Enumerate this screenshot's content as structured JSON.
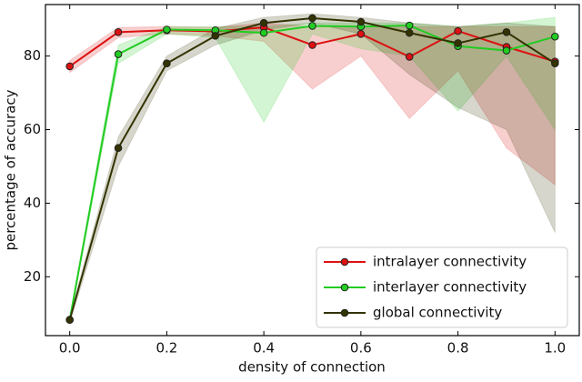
{
  "chart_data": {
    "type": "line",
    "xlabel": "density of connection",
    "ylabel": "percentage of accuracy",
    "x": [
      0,
      0.1,
      0.2,
      0.3,
      0.4,
      0.5,
      0.6,
      0.7,
      0.8,
      0.9,
      1.0
    ],
    "xlim": [
      -0.05,
      1.05
    ],
    "ylim": [
      4,
      94
    ],
    "xticks": [
      {
        "value": 0,
        "label": "0.0"
      },
      {
        "value": 0.2,
        "label": "0.2"
      },
      {
        "value": 0.4,
        "label": "0.4"
      },
      {
        "value": 0.6,
        "label": "0.6"
      },
      {
        "value": 0.8,
        "label": "0.8"
      },
      {
        "value": 1,
        "label": "1.0"
      }
    ],
    "yticks": [
      20,
      40,
      60,
      80
    ],
    "legend": "lower right",
    "series": [
      {
        "name": "intralayer connectivity",
        "color": "#dd1111",
        "values": [
          77.2,
          86.5,
          87,
          86.7,
          87.8,
          83,
          86,
          79.8,
          86.8,
          82.5,
          78.5
        ],
        "lower": [
          75.5,
          85,
          86,
          85.5,
          84,
          71,
          80,
          63,
          76,
          55,
          45
        ],
        "upper": [
          78.8,
          87.8,
          88,
          87.8,
          89,
          88,
          88,
          88,
          88,
          88,
          88
        ]
      },
      {
        "name": "interlayer connectivity",
        "color": "#22cc22",
        "values": [
          8.3,
          80.5,
          87.2,
          87,
          86.3,
          88.2,
          88,
          88.3,
          82.7,
          81.5,
          85.3
        ],
        "lower": [
          7.5,
          78,
          86,
          85,
          62,
          86,
          82,
          80,
          65,
          80,
          60
        ],
        "upper": [
          9,
          83,
          88,
          88,
          88,
          89,
          89,
          89,
          88,
          89,
          90.5
        ]
      },
      {
        "name": "global connectivity",
        "color": "#333300",
        "values": [
          8.3,
          55,
          78,
          85.5,
          89,
          90.3,
          89.3,
          86.3,
          83.5,
          86.5,
          78
        ],
        "lower": [
          7.5,
          50,
          76,
          83,
          87,
          89,
          86,
          75,
          66,
          60,
          32
        ],
        "upper": [
          9,
          58,
          80,
          87.5,
          90.5,
          91.5,
          90.5,
          89,
          88,
          89,
          88
        ]
      }
    ]
  }
}
